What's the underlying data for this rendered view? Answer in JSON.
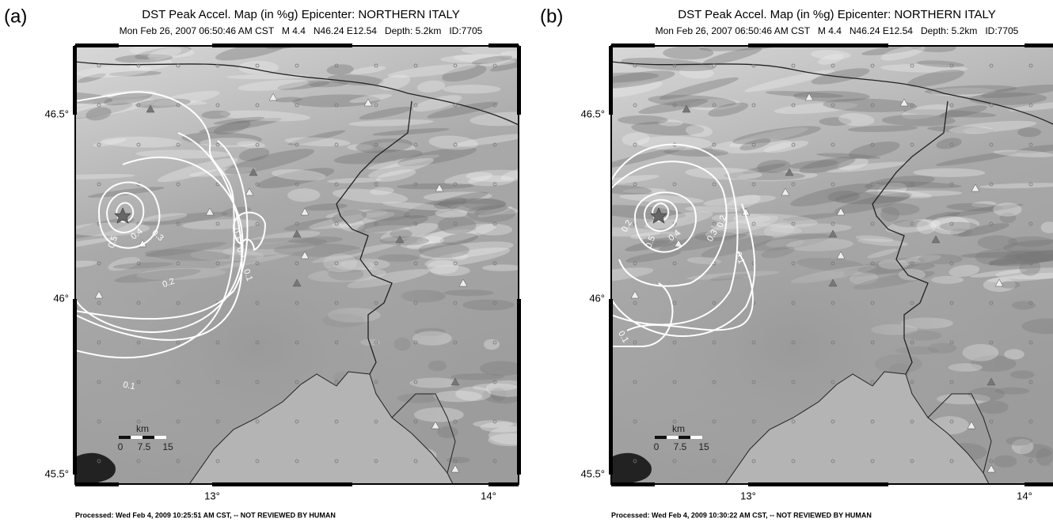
{
  "panels": [
    {
      "label": "(a)",
      "title": "DST Peak Accel. Map (in %g) Epicenter: NORTHERN ITALY",
      "subtitle": "Mon Feb 26, 2007 06:50:46 AM CST   M 4.4   N46.24 E12.54   Depth: 5.2km   ID:7705",
      "lat_ticks": [
        "46.5°",
        "46°",
        "45.5°"
      ],
      "lon_ticks": [
        "13°",
        "14°"
      ],
      "scale_bar": {
        "unit": "km",
        "labels": [
          "0",
          "7.5",
          "15"
        ]
      },
      "contour_labels": [
        "0.5",
        "0.4",
        "0.3",
        "0.2",
        "0.1",
        "0.1",
        "0.1",
        "0.1"
      ],
      "footer": "Processed: Wed Feb 4, 2009 10:25:51 AM CST, -- NOT REVIEWED BY HUMAN"
    },
    {
      "label": "(b)",
      "title": "DST Peak Accel. Map (in %g) Epicenter: NORTHERN ITALY",
      "subtitle": "Mon Feb 26, 2007 06:50:46 AM CST   M 4.4   N46.24 E12.54   Depth: 5.2km   ID:7705",
      "lat_ticks": [
        "46.5°",
        "46°",
        "45.5°"
      ],
      "lon_ticks": [
        "13°",
        "14°"
      ],
      "scale_bar": {
        "unit": "km",
        "labels": [
          "0",
          "7.5",
          "15"
        ]
      },
      "contour_labels": [
        "0.5",
        "0.4",
        "0.3",
        "0.2",
        "0.2",
        "0.1",
        "0.1"
      ],
      "footer": "Processed: Wed Feb 4, 2009 10:30:22 AM CST, -- NOT REVIEWED BY HUMAN"
    }
  ]
}
